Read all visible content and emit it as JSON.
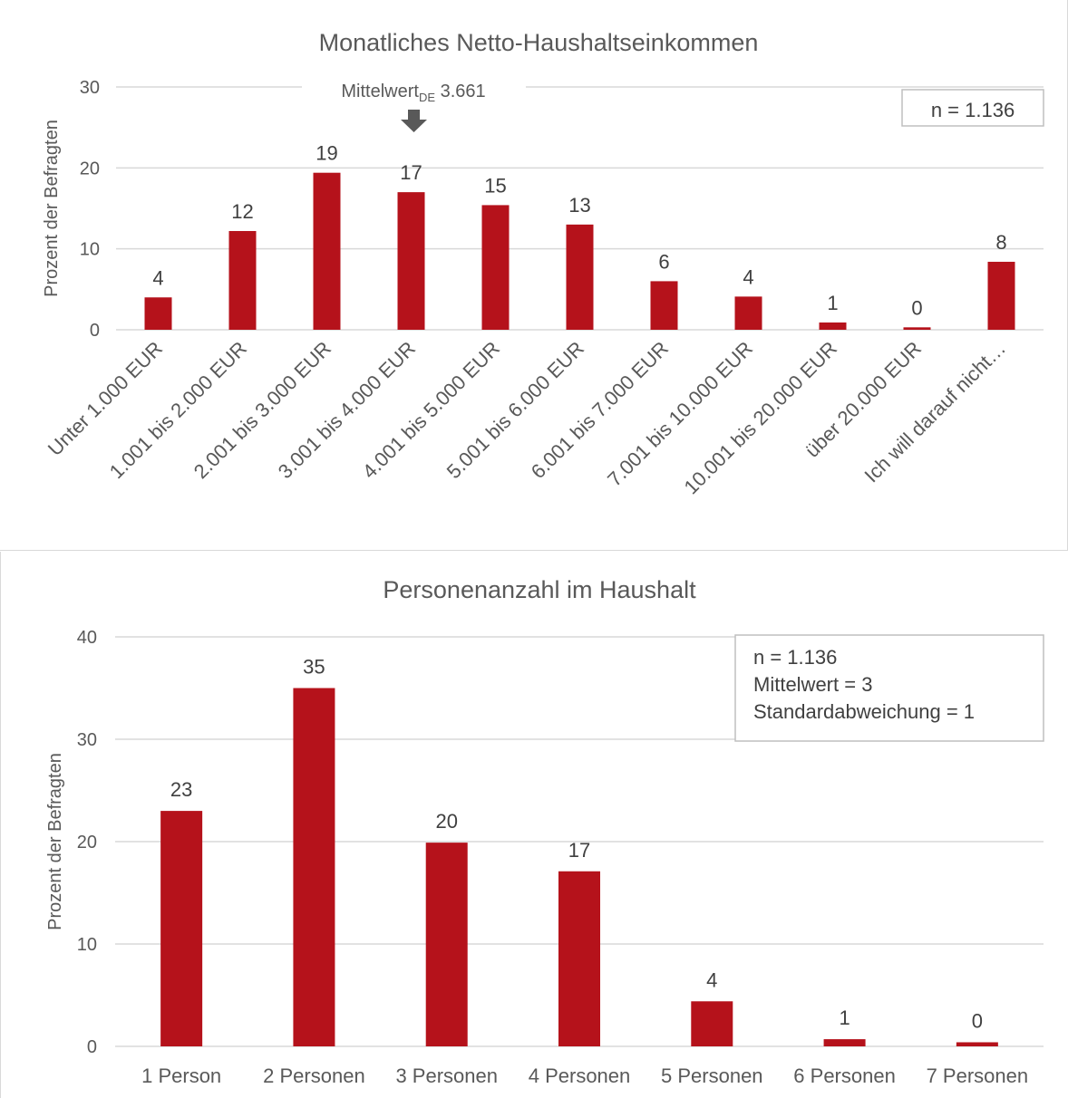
{
  "colors": {
    "bar": "#b5121b",
    "grid": "#d9d9d9",
    "text": "#595959"
  },
  "chart_data": [
    {
      "type": "bar",
      "title": "Monatliches Netto-Haushaltseinkommen",
      "ylabel": "Prozent der Befragten",
      "ylim": [
        0,
        30
      ],
      "yticks": [
        0,
        10,
        20,
        30
      ],
      "grid": true,
      "categories": [
        "Unter 1.000 EUR",
        "1.001 bis 2.000 EUR",
        "2.001 bis 3.000 EUR",
        "3.001 bis 4.000 EUR",
        "4.001 bis 5.000 EUR",
        "5.001 bis 6.000 EUR",
        "6.001 bis 7.000 EUR",
        "7.001 bis 10.000 EUR",
        "10.001 bis 20.000 EUR",
        "über 20.000 EUR",
        "Ich will darauf nicht…"
      ],
      "values": [
        4.0,
        12.2,
        19.4,
        17.0,
        15.4,
        13.0,
        6.0,
        4.1,
        0.9,
        0.3,
        8.4
      ],
      "data_labels": [
        "4",
        "12",
        "19",
        "17",
        "15",
        "13",
        "6",
        "4",
        "1",
        "0",
        "8"
      ],
      "annotation": {
        "text": "Mittelwert",
        "subscript": "DE",
        "value": "3.661"
      },
      "legend_box": [
        "n = 1.136"
      ]
    },
    {
      "type": "bar",
      "title": "Personenanzahl im Haushalt",
      "ylabel": "Prozent der Befragten",
      "ylim": [
        0,
        40
      ],
      "yticks": [
        0,
        10,
        20,
        30,
        40
      ],
      "grid": true,
      "categories": [
        "1 Person",
        "2 Personen",
        "3 Personen",
        "4 Personen",
        "5 Personen",
        "6 Personen",
        "7 Personen"
      ],
      "values": [
        23.0,
        35.0,
        19.9,
        17.1,
        4.4,
        0.7,
        0.4
      ],
      "data_labels": [
        "23",
        "35",
        "20",
        "17",
        "4",
        "1",
        "0"
      ],
      "legend_box": [
        "n = 1.136",
        "Mittelwert = 3",
        "Standardabweichung = 1"
      ]
    }
  ]
}
